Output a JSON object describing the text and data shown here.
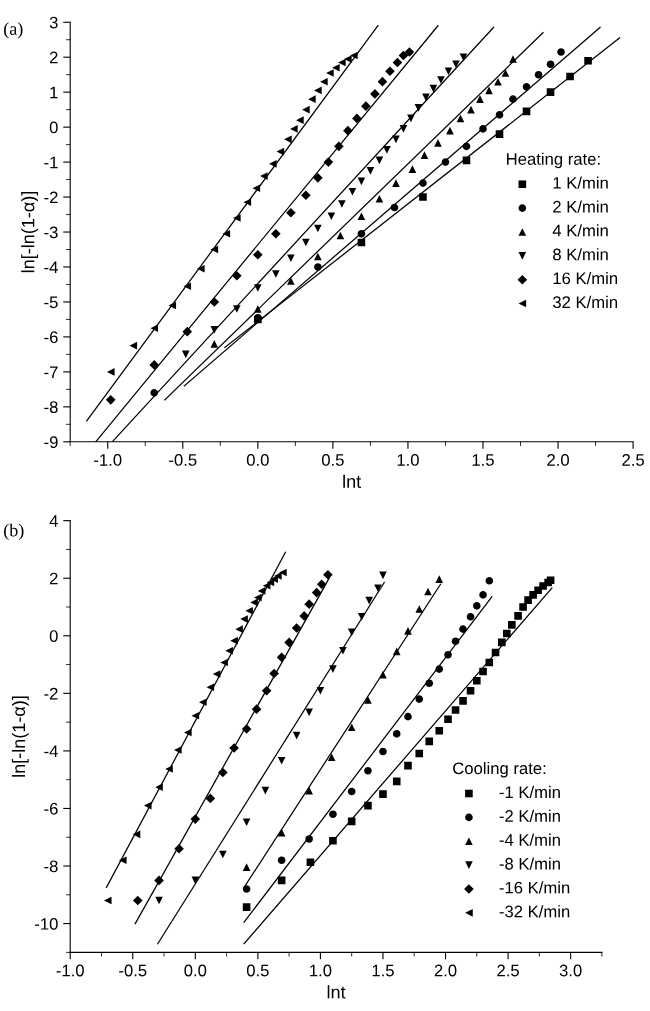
{
  "chart_data": [
    {
      "type": "scatter",
      "xlabel": "lnt",
      "ylabel": "ln[-ln(1-α)]",
      "legend_title": "Heating rate:",
      "legend": "right",
      "annotations": [
        "(a)"
      ],
      "xlim": [
        -1.25,
        2.5
      ],
      "ylim": [
        -9,
        3
      ],
      "xticks": [
        {
          "value": -1,
          "label": "-1.0"
        },
        {
          "value": -0.5,
          "label": "-0.5"
        },
        {
          "value": 0,
          "label": "0.0"
        },
        {
          "value": 0.5,
          "label": "0.5"
        },
        {
          "value": 1,
          "label": "1.0"
        },
        {
          "value": 1.5,
          "label": "1.5"
        },
        {
          "value": 2,
          "label": "2.0"
        },
        {
          "value": 2.5,
          "label": "2.5"
        }
      ],
      "yticks": [
        -9,
        -8,
        -7,
        -6,
        -5,
        -4,
        -3,
        -2,
        -1,
        0,
        1,
        2,
        3
      ],
      "grid": false,
      "series": [
        {
          "name": "1 K/min",
          "marker": "square",
          "color": "#000000",
          "x": [
            0,
            0.69,
            1.1,
            1.39,
            1.61,
            1.79,
            1.95,
            2.08,
            2.2
          ],
          "values": [
            -5.5,
            -3.3,
            -2.0,
            -0.95,
            -0.2,
            0.45,
            1.0,
            1.45,
            1.9
          ]
        },
        {
          "name": "2 K/min",
          "marker": "circle",
          "color": "#000000",
          "x": [
            -0.69,
            0,
            0.4,
            0.69,
            0.91,
            1.1,
            1.25,
            1.39,
            1.5,
            1.61,
            1.7,
            1.79,
            1.87,
            1.95,
            2.02
          ],
          "values": [
            -7.6,
            -5.45,
            -4.0,
            -3.05,
            -2.3,
            -1.6,
            -1.0,
            -0.55,
            -0.05,
            0.35,
            0.8,
            1.15,
            1.5,
            1.8,
            2.15
          ]
        },
        {
          "name": "4 K/min",
          "marker": "triangle",
          "color": "#000000",
          "x": [
            -0.29,
            0,
            0.22,
            0.4,
            0.55,
            0.69,
            0.81,
            0.92,
            1.03,
            1.11,
            1.2,
            1.28,
            1.35,
            1.42,
            1.48,
            1.54,
            1.6,
            1.65,
            1.7
          ],
          "values": [
            -6.2,
            -5.2,
            -4.4,
            -3.7,
            -3.1,
            -2.55,
            -2.05,
            -1.6,
            -1.2,
            -0.8,
            -0.45,
            -0.1,
            0.25,
            0.5,
            0.8,
            1.05,
            1.3,
            1.55,
            1.95
          ]
        },
        {
          "name": "8 K/min",
          "marker": "triangle_down",
          "color": "#000000",
          "x": [
            -0.48,
            -0.29,
            -0.14,
            0,
            0.12,
            0.22,
            0.32,
            0.4,
            0.49,
            0.56,
            0.63,
            0.69,
            0.75,
            0.81,
            0.86,
            0.92,
            0.97,
            1.02,
            1.07,
            1.12,
            1.17,
            1.22,
            1.27,
            1.32,
            1.37
          ],
          "values": [
            -6.5,
            -5.8,
            -5.2,
            -4.6,
            -4.2,
            -3.75,
            -3.3,
            -2.9,
            -2.55,
            -2.2,
            -1.85,
            -1.55,
            -1.25,
            -0.95,
            -0.65,
            -0.35,
            -0.05,
            0.25,
            0.55,
            0.85,
            1.1,
            1.35,
            1.6,
            1.8,
            2.0
          ]
        },
        {
          "name": "16 K/min",
          "marker": "diamond",
          "color": "#000000",
          "x": [
            -0.98,
            -0.69,
            -0.47,
            -0.29,
            -0.14,
            0,
            0.12,
            0.22,
            0.32,
            0.4,
            0.47,
            0.54,
            0.6,
            0.66,
            0.72,
            0.78,
            0.83,
            0.88,
            0.93,
            0.97,
            1.01
          ],
          "values": [
            -7.8,
            -6.8,
            -5.85,
            -5.0,
            -4.25,
            -3.65,
            -3.05,
            -2.45,
            -1.95,
            -1.45,
            -1.0,
            -0.55,
            -0.1,
            0.25,
            0.6,
            0.95,
            1.3,
            1.6,
            1.85,
            2.05,
            2.15
          ]
        },
        {
          "name": "32 K/min",
          "marker": "triangle_left",
          "color": "#000000",
          "x": [
            -0.98,
            -0.83,
            -0.69,
            -0.57,
            -0.47,
            -0.38,
            -0.29,
            -0.21,
            -0.14,
            -0.07,
            -0.01,
            0.04,
            0.1,
            0.15,
            0.2,
            0.24,
            0.28,
            0.32,
            0.36,
            0.4,
            0.44,
            0.48,
            0.52,
            0.56,
            0.6,
            0.64
          ],
          "values": [
            -7.0,
            -6.25,
            -5.75,
            -5.1,
            -4.55,
            -4.05,
            -3.5,
            -3.05,
            -2.6,
            -2.15,
            -1.75,
            -1.4,
            -1.05,
            -0.7,
            -0.35,
            -0.05,
            0.2,
            0.5,
            0.8,
            1.05,
            1.3,
            1.55,
            1.7,
            1.85,
            1.95,
            2.05
          ]
        },
        {
          "type": "line",
          "color": "#000000",
          "x": [
            -0.22,
            2.41
          ],
          "values": [
            -6.3,
            2.55
          ]
        },
        {
          "type": "line",
          "color": "#000000",
          "x": [
            -0.49,
            2.28
          ],
          "values": [
            -7.4,
            2.85
          ]
        },
        {
          "type": "line",
          "color": "#000000",
          "x": [
            -0.62,
            1.9
          ],
          "values": [
            -7.8,
            2.7
          ]
        },
        {
          "type": "line",
          "color": "#000000",
          "x": [
            -0.97,
            1.57
          ],
          "values": [
            -9.0,
            2.85
          ]
        },
        {
          "type": "line",
          "color": "#000000",
          "x": [
            -1.08,
            1.2
          ],
          "values": [
            -9.0,
            2.9
          ]
        },
        {
          "type": "line",
          "color": "#000000",
          "x": [
            -1.14,
            0.8
          ],
          "values": [
            -8.4,
            2.9
          ]
        }
      ]
    },
    {
      "type": "scatter",
      "xlabel": "lnt",
      "ylabel": "ln[-ln(1-α)]",
      "legend_title": "Cooling rate:",
      "legend": "bottom right",
      "annotations": [
        "(b)"
      ],
      "xlim": [
        -1.0,
        3.25
      ],
      "ylim": [
        -11,
        4
      ],
      "xticks": [
        {
          "value": -1,
          "label": "-1.0"
        },
        {
          "value": -0.5,
          "label": "-0.5"
        },
        {
          "value": 0,
          "label": "0.0"
        },
        {
          "value": 0.5,
          "label": "0.5"
        },
        {
          "value": 1,
          "label": "1.0"
        },
        {
          "value": 1.5,
          "label": "1.5"
        },
        {
          "value": 2,
          "label": "2.0"
        },
        {
          "value": 2.5,
          "label": "2.5"
        },
        {
          "value": 3,
          "label": "3.0"
        }
      ],
      "yticks": [
        -10,
        -8,
        -6,
        -4,
        -2,
        0,
        2,
        4
      ],
      "grid": false,
      "series": [
        {
          "name": "-1 K/min",
          "marker": "square",
          "color": "#000000",
          "x": [
            0.41,
            0.69,
            0.92,
            1.1,
            1.25,
            1.38,
            1.5,
            1.61,
            1.7,
            1.79,
            1.87,
            1.95,
            2.02,
            2.08,
            2.14,
            2.2,
            2.25,
            2.3,
            2.35,
            2.4,
            2.45,
            2.49,
            2.53,
            2.58,
            2.62,
            2.66,
            2.7,
            2.74,
            2.78,
            2.82,
            2.84
          ],
          "values": [
            -9.43,
            -8.5,
            -7.87,
            -7.12,
            -6.45,
            -5.9,
            -5.5,
            -5.06,
            -4.51,
            -4.09,
            -3.67,
            -3.3,
            -2.9,
            -2.58,
            -2.26,
            -1.91,
            -1.56,
            -1.24,
            -0.93,
            -0.58,
            -0.23,
            0.08,
            0.38,
            0.69,
            1.0,
            1.24,
            1.42,
            1.58,
            1.73,
            1.85,
            1.93
          ]
        },
        {
          "name": "-2 K/min",
          "marker": "circle",
          "color": "#000000",
          "x": [
            0.41,
            0.69,
            0.91,
            1.1,
            1.25,
            1.38,
            1.5,
            1.61,
            1.7,
            1.79,
            1.87,
            1.95,
            2.02,
            2.08,
            2.14,
            2.2,
            2.25,
            2.3,
            2.35
          ],
          "values": [
            -8.8,
            -7.8,
            -7.06,
            -6.2,
            -5.41,
            -4.69,
            -4.02,
            -3.41,
            -2.81,
            -2.2,
            -1.65,
            -1.16,
            -0.66,
            -0.19,
            0.23,
            0.66,
            1.04,
            1.42,
            1.91
          ]
        },
        {
          "name": "-4 K/min",
          "marker": "triangle",
          "color": "#000000",
          "x": [
            0.41,
            0.69,
            0.91,
            1.09,
            1.25,
            1.38,
            1.5,
            1.61,
            1.7,
            1.79,
            1.86,
            1.95
          ],
          "values": [
            -8.04,
            -6.84,
            -5.38,
            -4.22,
            -3.18,
            -2.23,
            -1.35,
            -0.54,
            0.17,
            0.93,
            1.54,
            1.97
          ]
        },
        {
          "name": "-8 K/min",
          "marker": "triangle_down",
          "color": "#000000",
          "x": [
            -0.29,
            0,
            0.22,
            0.41,
            0.56,
            0.69,
            0.81,
            0.91,
            1.0,
            1.1,
            1.18,
            1.25,
            1.33,
            1.39,
            1.46,
            1.5
          ],
          "values": [
            -9.2,
            -8.5,
            -7.6,
            -6.48,
            -5.38,
            -4.34,
            -3.47,
            -2.66,
            -1.91,
            -1.16,
            -0.52,
            0.12,
            0.66,
            1.22,
            1.65,
            2.1
          ]
        },
        {
          "name": "-16 K/min",
          "marker": "diamond",
          "color": "#000000",
          "x": [
            -0.46,
            -0.29,
            -0.13,
            0,
            0.12,
            0.22,
            0.31,
            0.41,
            0.49,
            0.57,
            0.63,
            0.69,
            0.75,
            0.81,
            0.87,
            0.91,
            0.97,
            1.01,
            1.06
          ],
          "values": [
            -9.2,
            -8.5,
            -7.4,
            -6.37,
            -5.65,
            -4.75,
            -3.9,
            -3.24,
            -2.55,
            -1.91,
            -1.31,
            -0.75,
            -0.23,
            0.27,
            0.69,
            1.1,
            1.5,
            1.79,
            2.12
          ]
        },
        {
          "name": "-32 K/min",
          "marker": "triangle_left",
          "color": "#000000",
          "x": [
            -0.7,
            -0.58,
            -0.47,
            -0.38,
            -0.29,
            -0.21,
            -0.14,
            -0.06,
            0,
            0.06,
            0.12,
            0.17,
            0.23,
            0.27,
            0.31,
            0.35,
            0.39,
            0.43,
            0.47,
            0.5,
            0.53,
            0.57,
            0.6,
            0.63,
            0.66,
            0.7
          ],
          "values": [
            -9.2,
            -7.8,
            -6.9,
            -5.9,
            -5.26,
            -4.63,
            -3.97,
            -3.36,
            -2.78,
            -2.31,
            -1.79,
            -1.33,
            -0.93,
            -0.52,
            -0.17,
            0.23,
            0.58,
            0.87,
            1.16,
            1.33,
            1.56,
            1.74,
            1.85,
            1.97,
            2.08,
            2.2
          ]
        },
        {
          "type": "line",
          "color": "#000000",
          "x": [
            0.39,
            2.85
          ],
          "values": [
            -10.7,
            1.66
          ]
        },
        {
          "type": "line",
          "color": "#000000",
          "x": [
            0.39,
            2.37
          ],
          "values": [
            -9.95,
            1.35
          ]
        },
        {
          "type": "line",
          "color": "#000000",
          "x": [
            0.39,
            1.96
          ],
          "values": [
            -8.74,
            1.79
          ]
        },
        {
          "type": "line",
          "color": "#000000",
          "x": [
            -0.3,
            1.51
          ],
          "values": [
            -10.7,
            1.85
          ]
        },
        {
          "type": "line",
          "color": "#000000",
          "x": [
            -0.48,
            1.07
          ],
          "values": [
            -10.0,
            2.0
          ]
        },
        {
          "type": "line",
          "color": "#000000",
          "x": [
            -0.71,
            0.72
          ],
          "values": [
            -8.74,
            2.9
          ]
        }
      ]
    }
  ]
}
